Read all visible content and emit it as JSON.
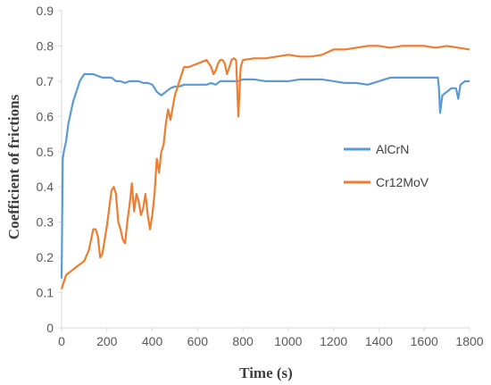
{
  "chart_data": {
    "type": "line",
    "title": "",
    "xlabel": "Time (s)",
    "ylabel": "Coefficient of frictions",
    "xlim": [
      0,
      1800
    ],
    "ylim": [
      0,
      0.9
    ],
    "xticks": [
      "0",
      "200",
      "400",
      "600",
      "800",
      "1000",
      "1200",
      "1400",
      "1600",
      "1800"
    ],
    "yticks": [
      "0",
      "0.1",
      "0.2",
      "0.3",
      "0.4",
      "0.5",
      "0.6",
      "0.7",
      "0.8",
      "0.9"
    ],
    "grid": false,
    "legend": "right",
    "series": [
      {
        "name": "AlCrN",
        "color": "#5B9BD5",
        "x": [
          0,
          5,
          10,
          20,
          30,
          40,
          50,
          60,
          70,
          80,
          90,
          100,
          120,
          140,
          160,
          180,
          200,
          220,
          240,
          260,
          280,
          300,
          320,
          340,
          360,
          380,
          400,
          420,
          440,
          460,
          480,
          500,
          520,
          540,
          560,
          580,
          600,
          620,
          640,
          660,
          680,
          700,
          720,
          740,
          760,
          780,
          800,
          850,
          900,
          950,
          1000,
          1050,
          1100,
          1150,
          1200,
          1250,
          1300,
          1350,
          1400,
          1450,
          1500,
          1550,
          1600,
          1640,
          1660,
          1665,
          1670,
          1680,
          1700,
          1720,
          1740,
          1750,
          1760,
          1780,
          1800
        ],
        "values": [
          0.14,
          0.48,
          0.5,
          0.53,
          0.58,
          0.61,
          0.64,
          0.66,
          0.68,
          0.7,
          0.71,
          0.72,
          0.72,
          0.72,
          0.715,
          0.71,
          0.71,
          0.71,
          0.7,
          0.7,
          0.695,
          0.7,
          0.7,
          0.7,
          0.695,
          0.695,
          0.69,
          0.67,
          0.66,
          0.67,
          0.68,
          0.685,
          0.685,
          0.69,
          0.69,
          0.69,
          0.69,
          0.69,
          0.69,
          0.695,
          0.69,
          0.7,
          0.7,
          0.7,
          0.7,
          0.7,
          0.705,
          0.705,
          0.7,
          0.7,
          0.7,
          0.705,
          0.705,
          0.705,
          0.7,
          0.695,
          0.695,
          0.69,
          0.7,
          0.71,
          0.71,
          0.71,
          0.71,
          0.71,
          0.71,
          0.68,
          0.61,
          0.66,
          0.67,
          0.68,
          0.68,
          0.65,
          0.69,
          0.7,
          0.7
        ]
      },
      {
        "name": "Cr12MoV",
        "color": "#ED7D31",
        "x": [
          0,
          10,
          20,
          40,
          60,
          80,
          100,
          120,
          130,
          140,
          150,
          160,
          170,
          180,
          200,
          220,
          230,
          240,
          250,
          260,
          270,
          280,
          290,
          300,
          310,
          320,
          330,
          340,
          350,
          360,
          370,
          380,
          390,
          400,
          410,
          420,
          430,
          440,
          450,
          460,
          470,
          480,
          500,
          520,
          540,
          560,
          580,
          600,
          620,
          640,
          660,
          670,
          680,
          690,
          700,
          710,
          720,
          730,
          740,
          750,
          760,
          770,
          780,
          785,
          790,
          800,
          850,
          900,
          950,
          1000,
          1050,
          1100,
          1150,
          1200,
          1250,
          1300,
          1350,
          1400,
          1450,
          1500,
          1550,
          1600,
          1650,
          1700,
          1750,
          1800
        ],
        "values": [
          0.11,
          0.13,
          0.15,
          0.16,
          0.17,
          0.18,
          0.19,
          0.22,
          0.25,
          0.28,
          0.28,
          0.26,
          0.2,
          0.21,
          0.29,
          0.39,
          0.4,
          0.38,
          0.3,
          0.28,
          0.25,
          0.24,
          0.3,
          0.35,
          0.41,
          0.33,
          0.38,
          0.36,
          0.32,
          0.34,
          0.38,
          0.32,
          0.28,
          0.32,
          0.38,
          0.48,
          0.44,
          0.5,
          0.52,
          0.58,
          0.62,
          0.59,
          0.66,
          0.7,
          0.74,
          0.74,
          0.745,
          0.75,
          0.755,
          0.76,
          0.74,
          0.72,
          0.73,
          0.75,
          0.76,
          0.76,
          0.75,
          0.72,
          0.74,
          0.76,
          0.765,
          0.76,
          0.6,
          0.67,
          0.74,
          0.76,
          0.765,
          0.765,
          0.77,
          0.775,
          0.77,
          0.77,
          0.775,
          0.79,
          0.79,
          0.795,
          0.8,
          0.8,
          0.795,
          0.8,
          0.8,
          0.8,
          0.795,
          0.8,
          0.795,
          0.79
        ]
      }
    ]
  }
}
